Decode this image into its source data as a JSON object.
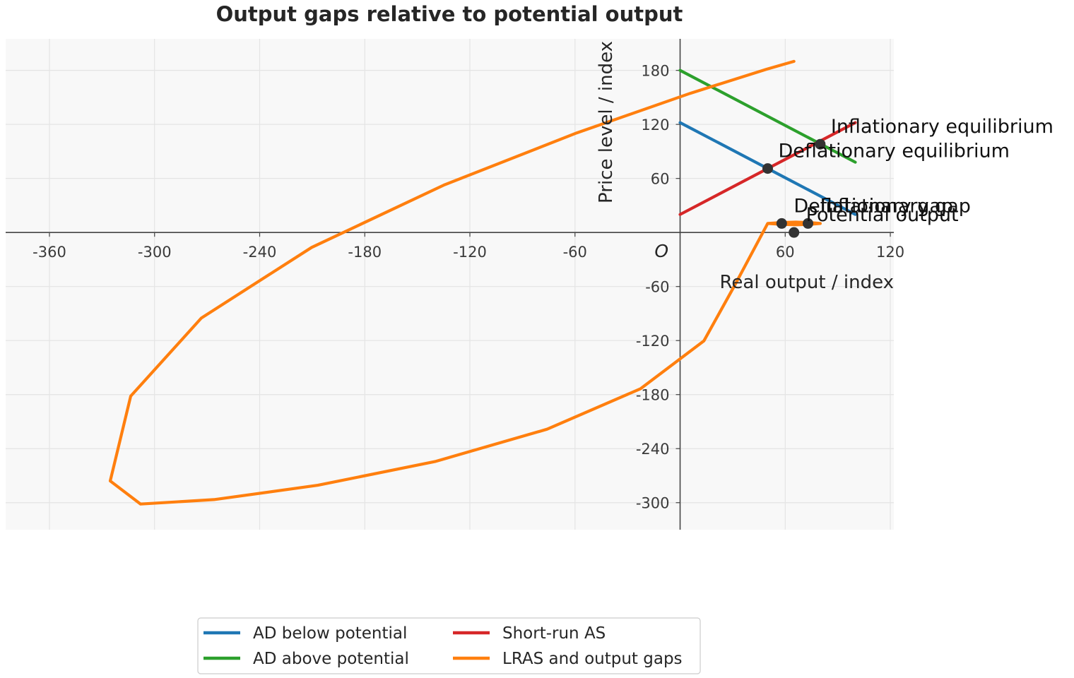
{
  "chart_data": {
    "type": "line",
    "title": "Output gaps relative to potential output",
    "xlabel": "Real output / index",
    "ylabel": "Price level / index",
    "origin_label": "O",
    "xlim": [
      -385,
      122
    ],
    "ylim": [
      -330,
      215
    ],
    "xticks": [
      -360,
      -300,
      -240,
      -180,
      -120,
      -60,
      60,
      120
    ],
    "yticks": [
      -300,
      -240,
      -180,
      -120,
      -60,
      60,
      120,
      180
    ],
    "grid": true,
    "legend_position": "bottom-center",
    "series": [
      {
        "name": "AD below potential",
        "color": "#1f77b4",
        "x": [
          0,
          100
        ],
        "y": [
          122,
          20
        ]
      },
      {
        "name": "AD above potential",
        "color": "#2ca02c",
        "x": [
          0,
          100
        ],
        "y": [
          180,
          78
        ]
      },
      {
        "name": "Short-run AS",
        "color": "#d62728",
        "x": [
          0,
          100
        ],
        "y": [
          20,
          122
        ]
      },
      {
        "name": "LRAS and output gaps",
        "color": "#ff7f0e",
        "x": [
          65.0,
          49.4,
          5.7,
          -58.9,
          -134.9,
          -210.3,
          -273.3,
          -313.6,
          -325.3,
          -308.0,
          -266.1,
          -206.8,
          -140.0,
          -75.9,
          -22.6,
          13.6,
          30.8,
          50,
          58,
          66,
          74,
          80,
          74,
          66,
          58,
          50
        ],
        "y": [
          190.0,
          181.3,
          154.5,
          110.6,
          52.6,
          -16.6,
          -95.1,
          -181.7,
          -275.9,
          -301.5,
          -296.6,
          -280.7,
          -254.4,
          -218.4,
          -173.5,
          -120.4,
          -60.0,
          10,
          11,
          11.5,
          11,
          10,
          9,
          8.5,
          9,
          10
        ]
      }
    ],
    "points": [
      {
        "x": 80,
        "y": 98,
        "label": "Inflationary equilibrium"
      },
      {
        "x": 50,
        "y": 71,
        "label": "Deflationary equilibrium"
      },
      {
        "x": 58,
        "y": 10,
        "label": "Deflationary gap"
      },
      {
        "x": 73,
        "y": 10,
        "label": "Inflationary gap"
      },
      {
        "x": 65,
        "y": 0,
        "label": "Potential output"
      }
    ]
  }
}
